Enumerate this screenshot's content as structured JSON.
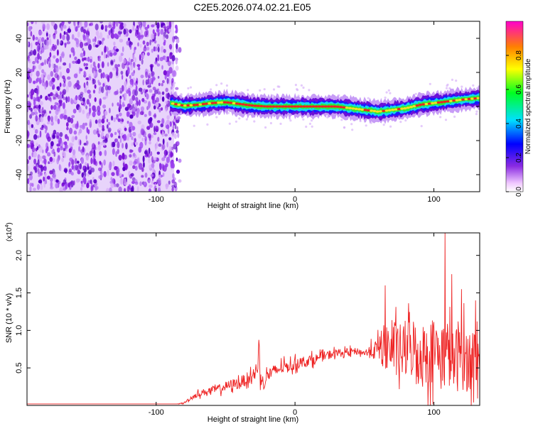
{
  "title": "C2E5.2026.074.02.21.E05",
  "colors": {
    "snr_line": "#ee2222",
    "axis": "#000000",
    "background": "#ffffff"
  },
  "chart_data": [
    {
      "type": "heatmap",
      "name": "spectrogram",
      "xlabel": "Height of straight line (km)",
      "ylabel": "Frequency (Hz)",
      "xlim": [
        -193,
        133
      ],
      "ylim": [
        -50,
        50
      ],
      "xticks": [
        "-100",
        "0",
        "100"
      ],
      "xtick_values": [
        -100,
        0,
        100
      ],
      "yticks": [
        "-40",
        "-20",
        "0",
        "20",
        "40"
      ],
      "ytick_values": [
        -40,
        -20,
        0,
        20,
        40
      ],
      "colorbar": {
        "label": "Normalized spectral amplitude",
        "range": [
          0,
          1
        ],
        "ticks": [
          "0.0",
          "0.2",
          "0.4",
          "0.6",
          "0.8"
        ],
        "tick_values": [
          0.0,
          0.2,
          0.4,
          0.6,
          0.8
        ],
        "colormap": "rainbow (white-violet-blue-cyan-green-yellow-red)"
      },
      "noise_region_x": [
        -193,
        -87
      ],
      "peak_frequency_trace": {
        "x": [
          -90,
          -80,
          -70,
          -60,
          -50,
          -40,
          -30,
          -20,
          -10,
          0,
          10,
          20,
          30,
          40,
          50,
          60,
          70,
          80,
          90,
          100,
          110,
          120,
          133
        ],
        "y": [
          2,
          0.5,
          1,
          2,
          2.5,
          1.5,
          0.5,
          0,
          0,
          0,
          0,
          0,
          0,
          -1,
          -2,
          -3,
          -2,
          -1,
          1,
          2,
          3,
          4,
          5
        ]
      }
    },
    {
      "type": "line",
      "name": "snr",
      "xlabel": "Height of straight line (km)",
      "ylabel": "SNR (10 * v/v)",
      "y_multiplier": "(x10^4)",
      "y_multiplier_base": "(x10",
      "y_multiplier_exp": "4",
      "y_multiplier_close": ")",
      "xlim": [
        -193,
        133
      ],
      "ylim": [
        0,
        2.3
      ],
      "xticks": [
        "-100",
        "0",
        "100"
      ],
      "xtick_values": [
        -100,
        0,
        100
      ],
      "yticks": [
        "0.5",
        "1.0",
        "1.5",
        "2.0"
      ],
      "ytick_values": [
        0.5,
        1.0,
        1.5,
        2.0
      ],
      "series": [
        {
          "x": [
            -193,
            -85,
            -80,
            -75,
            -70,
            -65,
            -60,
            -55,
            -50,
            -45,
            -40,
            -35,
            -30,
            -27,
            -26,
            -25,
            -22,
            -20,
            -15,
            -10,
            -5,
            0,
            5,
            10,
            15,
            20,
            25,
            30,
            35,
            40,
            45,
            50,
            55,
            60,
            65,
            70,
            75,
            80,
            85,
            90,
            95,
            100,
            105,
            110,
            115,
            120,
            125,
            130,
            133
          ],
          "y": [
            0.02,
            0.02,
            0.03,
            0.1,
            0.15,
            0.18,
            0.2,
            0.22,
            0.25,
            0.28,
            0.3,
            0.35,
            0.4,
            0.45,
            0.92,
            0.35,
            0.3,
            0.4,
            0.45,
            0.5,
            0.52,
            0.55,
            0.58,
            0.6,
            0.62,
            0.65,
            0.68,
            0.7,
            0.7,
            0.72,
            0.72,
            0.7,
            0.72,
            0.75,
            0.8,
            0.75,
            0.7,
            0.75,
            0.78,
            0.65,
            0.7,
            0.75,
            0.65,
            0.7,
            0.6,
            0.65,
            0.6,
            0.65,
            0.6
          ],
          "noise_amplitude": {
            "x": [
              -85,
              -70,
              -40,
              -20,
              0,
              50,
              60,
              65,
              70,
              80,
              90,
              100,
              108,
              115,
              125,
              133
            ],
            "a": [
              0,
              0.05,
              0.1,
              0.12,
              0.1,
              0.05,
              0.2,
              0.4,
              0.45,
              0.5,
              0.55,
              0.55,
              0.6,
              0.55,
              0.55,
              0.5
            ]
          },
          "notable_peaks": [
            {
              "x": 65,
              "y": 1.6
            },
            {
              "x": 108,
              "y": 2.3
            },
            {
              "x": 113,
              "y": 1.75
            },
            {
              "x": 120,
              "y": 1.55
            },
            {
              "x": 130,
              "y": 1.4
            }
          ]
        }
      ]
    }
  ]
}
